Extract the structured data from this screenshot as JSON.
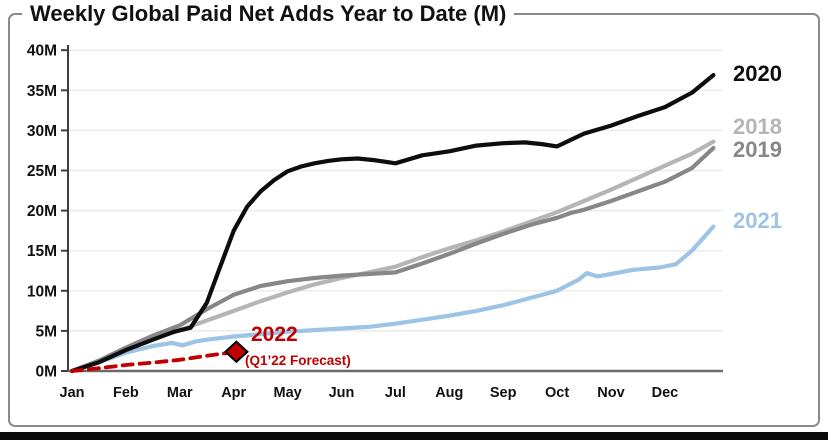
{
  "frame": {
    "border_color": "#8a8a8a",
    "bottom_bar_color": "#0b0b0b"
  },
  "chart_data": {
    "type": "line",
    "title": "Weekly Global Paid Net Adds Year to Date (M)",
    "xlabel": "",
    "ylabel": "",
    "x_unit": "months elapsed since Jan 1 (0 = Jan 1, 12 = Dec 31)",
    "y_unit": "millions of paid net adds, cumulative YTD",
    "xlim": [
      0,
      12
    ],
    "ylim": [
      0,
      40
    ],
    "grid": true,
    "gridline_color": "#ececec",
    "axis_color": "#3d3d3d",
    "y_ticks": [
      {
        "value": 0,
        "label": "0M"
      },
      {
        "value": 5,
        "label": "5M"
      },
      {
        "value": 10,
        "label": "10M"
      },
      {
        "value": 15,
        "label": "15M"
      },
      {
        "value": 20,
        "label": "20M"
      },
      {
        "value": 25,
        "label": "25M"
      },
      {
        "value": 30,
        "label": "30M"
      },
      {
        "value": 35,
        "label": "35M"
      },
      {
        "value": 40,
        "label": "40M"
      }
    ],
    "x_tick_labels": [
      "Jan",
      "Feb",
      "Mar",
      "Apr",
      "May",
      "Jun",
      "Jul",
      "Aug",
      "Sep",
      "Oct",
      "Nov",
      "Dec"
    ],
    "series": [
      {
        "name": "2018",
        "color": "#b5b5b5",
        "style": "solid",
        "points": [
          [
            0,
            0
          ],
          [
            0.5,
            1.2
          ],
          [
            1,
            2.7
          ],
          [
            1.5,
            4.0
          ],
          [
            2,
            5.1
          ],
          [
            2.5,
            6.3
          ],
          [
            3,
            7.5
          ],
          [
            3.5,
            8.7
          ],
          [
            4,
            9.8
          ],
          [
            4.5,
            10.8
          ],
          [
            5,
            11.6
          ],
          [
            5.5,
            12.3
          ],
          [
            6,
            13.0
          ],
          [
            6.5,
            14.2
          ],
          [
            7,
            15.3
          ],
          [
            7.5,
            16.3
          ],
          [
            8,
            17.4
          ],
          [
            8.5,
            18.6
          ],
          [
            9,
            19.8
          ],
          [
            9.5,
            21.2
          ],
          [
            10,
            22.6
          ],
          [
            10.5,
            24.1
          ],
          [
            11,
            25.6
          ],
          [
            11.5,
            27.1
          ],
          [
            11.9,
            28.6
          ]
        ]
      },
      {
        "name": "2019",
        "color": "#878787",
        "style": "solid",
        "points": [
          [
            0,
            0
          ],
          [
            0.5,
            1.3
          ],
          [
            1,
            2.9
          ],
          [
            1.5,
            4.4
          ],
          [
            2,
            5.7
          ],
          [
            2.5,
            7.7
          ],
          [
            3,
            9.5
          ],
          [
            3.5,
            10.6
          ],
          [
            4,
            11.2
          ],
          [
            4.5,
            11.6
          ],
          [
            5,
            11.9
          ],
          [
            5.5,
            12.1
          ],
          [
            6,
            12.3
          ],
          [
            6.5,
            13.4
          ],
          [
            7,
            14.6
          ],
          [
            7.5,
            15.9
          ],
          [
            8,
            17.1
          ],
          [
            8.5,
            18.2
          ],
          [
            9,
            19.1
          ],
          [
            9.25,
            19.7
          ],
          [
            9.5,
            20.1
          ],
          [
            10,
            21.2
          ],
          [
            10.5,
            22.4
          ],
          [
            11,
            23.6
          ],
          [
            11.5,
            25.3
          ],
          [
            11.9,
            27.8
          ]
        ]
      },
      {
        "name": "2021",
        "color": "#9dc3e6",
        "style": "solid",
        "points": [
          [
            0,
            0
          ],
          [
            0.5,
            1.1
          ],
          [
            1,
            2.3
          ],
          [
            1.5,
            3.1
          ],
          [
            1.85,
            3.5
          ],
          [
            2.05,
            3.2
          ],
          [
            2.3,
            3.7
          ],
          [
            2.5,
            3.9
          ],
          [
            3,
            4.3
          ],
          [
            3.5,
            4.6
          ],
          [
            4,
            4.9
          ],
          [
            4.5,
            5.1
          ],
          [
            5,
            5.3
          ],
          [
            5.5,
            5.5
          ],
          [
            6,
            5.9
          ],
          [
            6.5,
            6.4
          ],
          [
            7,
            6.9
          ],
          [
            7.5,
            7.5
          ],
          [
            8,
            8.2
          ],
          [
            8.5,
            9.1
          ],
          [
            9,
            10.0
          ],
          [
            9.4,
            11.4
          ],
          [
            9.55,
            12.2
          ],
          [
            9.75,
            11.8
          ],
          [
            10,
            12.1
          ],
          [
            10.4,
            12.6
          ],
          [
            10.9,
            12.9
          ],
          [
            11.2,
            13.3
          ],
          [
            11.5,
            15.0
          ],
          [
            11.9,
            18.0
          ]
        ]
      },
      {
        "name": "2020",
        "color": "#0d0d0d",
        "style": "solid",
        "points": [
          [
            0,
            0
          ],
          [
            0.5,
            1.1
          ],
          [
            1,
            2.6
          ],
          [
            1.5,
            3.9
          ],
          [
            1.9,
            4.9
          ],
          [
            2.2,
            5.4
          ],
          [
            2.5,
            8.5
          ],
          [
            2.75,
            13.0
          ],
          [
            3,
            17.5
          ],
          [
            3.25,
            20.5
          ],
          [
            3.5,
            22.4
          ],
          [
            3.75,
            23.8
          ],
          [
            4,
            24.9
          ],
          [
            4.25,
            25.5
          ],
          [
            4.5,
            25.9
          ],
          [
            4.75,
            26.2
          ],
          [
            5,
            26.4
          ],
          [
            5.3,
            26.5
          ],
          [
            5.6,
            26.3
          ],
          [
            6,
            25.9
          ],
          [
            6.5,
            26.9
          ],
          [
            7,
            27.4
          ],
          [
            7.5,
            28.1
          ],
          [
            8,
            28.4
          ],
          [
            8.4,
            28.5
          ],
          [
            8.7,
            28.3
          ],
          [
            9,
            28.0
          ],
          [
            9.5,
            29.6
          ],
          [
            10,
            30.6
          ],
          [
            10.5,
            31.8
          ],
          [
            11,
            32.9
          ],
          [
            11.5,
            34.7
          ],
          [
            11.9,
            36.9
          ]
        ]
      },
      {
        "name": "2022",
        "color": "#c00000",
        "style": "dashed",
        "points": [
          [
            0,
            0
          ],
          [
            0.5,
            0.35
          ],
          [
            1,
            0.75
          ],
          [
            1.5,
            1.05
          ],
          [
            2,
            1.4
          ],
          [
            2.5,
            1.9
          ],
          [
            3.05,
            2.4
          ]
        ],
        "marker": {
          "shape": "diamond",
          "at": [
            3.05,
            2.4
          ],
          "fill": "#c00000",
          "stroke": "#000000"
        }
      }
    ],
    "legend_position": "right",
    "legend": [
      {
        "label": "2020",
        "color": "#0d0d0d"
      },
      {
        "label": "2018",
        "color": "#b5b5b5"
      },
      {
        "label": "2019",
        "color": "#878787"
      },
      {
        "label": "2021",
        "color": "#9dc3e6"
      }
    ],
    "annotations": {
      "forecast_title": "2022",
      "forecast_subtitle": "(Q1’22 Forecast)",
      "forecast_color": "#c00000"
    }
  }
}
